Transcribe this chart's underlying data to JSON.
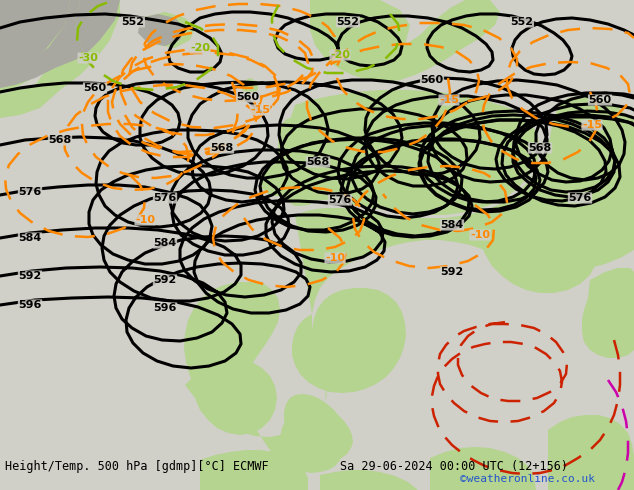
{
  "title_left": "Height/Temp. 500 hPa [gdmp][°C] ECMWF",
  "title_right": "Sa 29-06-2024 00:00 UTC (12+156)",
  "credit": "©weatheronline.co.uk",
  "bg_color": "#d2d2d2",
  "land_green": "#b8d898",
  "land_gray": "#a8a898",
  "font_size_title": 8.5,
  "font_size_credit": 8
}
